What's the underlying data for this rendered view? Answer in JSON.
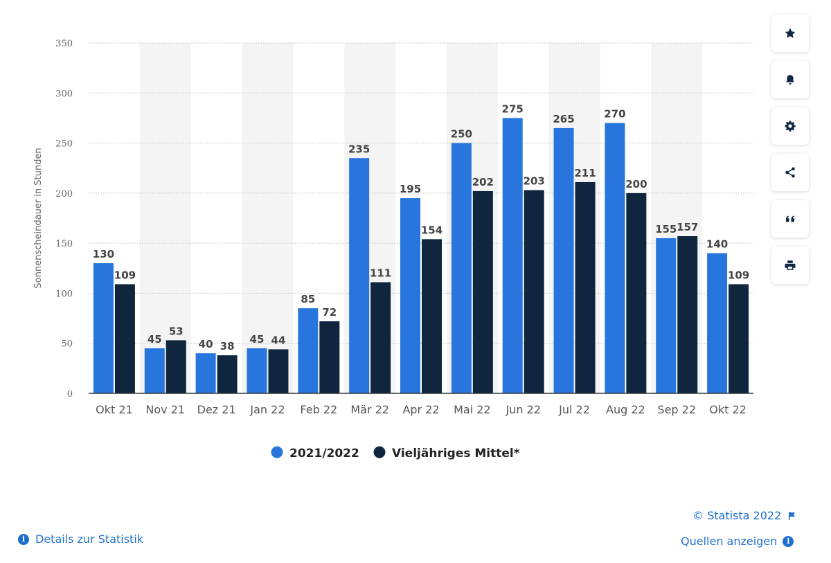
{
  "chart_data": {
    "type": "bar",
    "ylabel": "Sonnenscheindauer in Stunden",
    "ylim": [
      0,
      350
    ],
    "yticks": [
      0,
      50,
      100,
      150,
      200,
      250,
      300,
      350
    ],
    "grid": true,
    "legend_position": "bottom",
    "categories": [
      "Okt 21",
      "Nov 21",
      "Dez 21",
      "Jan 22",
      "Feb 22",
      "Mär 22",
      "Apr 22",
      "Mai 22",
      "Jun 22",
      "Jul 22",
      "Aug 22",
      "Sep 22",
      "Okt 22"
    ],
    "series": [
      {
        "name": "2021/2022",
        "color": "#2876dd",
        "values": [
          130,
          45,
          40,
          45,
          85,
          235,
          195,
          250,
          275,
          265,
          270,
          155,
          140
        ]
      },
      {
        "name": "Vieljähriges Mittel*",
        "color": "#10263e",
        "values": [
          109,
          53,
          38,
          44,
          72,
          111,
          154,
          202,
          203,
          211,
          200,
          157,
          109
        ]
      }
    ]
  },
  "toolbar": {
    "icons": [
      "star-icon",
      "bell-icon",
      "gear-icon",
      "share-icon",
      "quote-icon",
      "print-icon"
    ]
  },
  "footer": {
    "copyright": "© Statista 2022",
    "sources_link": "Quellen anzeigen",
    "details_link": "Details zur Statistik"
  }
}
